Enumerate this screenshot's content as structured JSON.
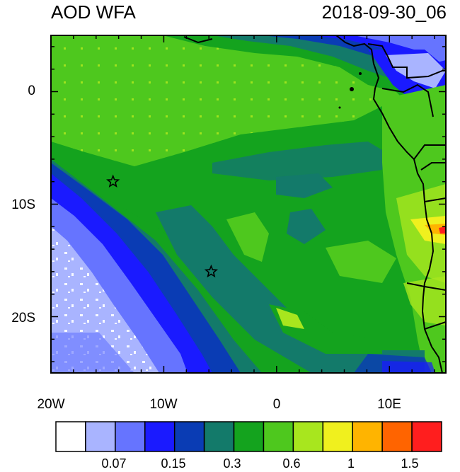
{
  "header": {
    "title": "AOD WFA",
    "timestamp": "2018-09-30_06"
  },
  "axes": {
    "x": {
      "range": [
        -20,
        15
      ],
      "ticks": [
        {
          "value": -20,
          "label": "20W"
        },
        {
          "value": -10,
          "label": "10W"
        },
        {
          "value": 0,
          "label": "0"
        },
        {
          "value": 10,
          "label": "10E"
        }
      ]
    },
    "y": {
      "range": [
        -25,
        5
      ],
      "ticks": [
        {
          "value": 0,
          "label": "0"
        },
        {
          "value": -10,
          "label": "10S"
        },
        {
          "value": -20,
          "label": "20S"
        }
      ]
    }
  },
  "markers": [
    {
      "name": "star-marker-north",
      "lon": -14.5,
      "lat": -8.0
    },
    {
      "name": "star-marker-south",
      "lon": -5.8,
      "lat": -16.0
    }
  ],
  "colorbar": {
    "colors": [
      "#ffffff",
      "#a9b4ff",
      "#6674ff",
      "#1a1aff",
      "#0a3cb4",
      "#137a6a",
      "#14a31e",
      "#4ec81e",
      "#a8e61e",
      "#f0f01e",
      "#ffb400",
      "#ff6400",
      "#ff1e1e"
    ],
    "labels": [
      "0.07",
      "0.15",
      "0.3",
      "0.6",
      "1",
      "1.5"
    ]
  }
}
